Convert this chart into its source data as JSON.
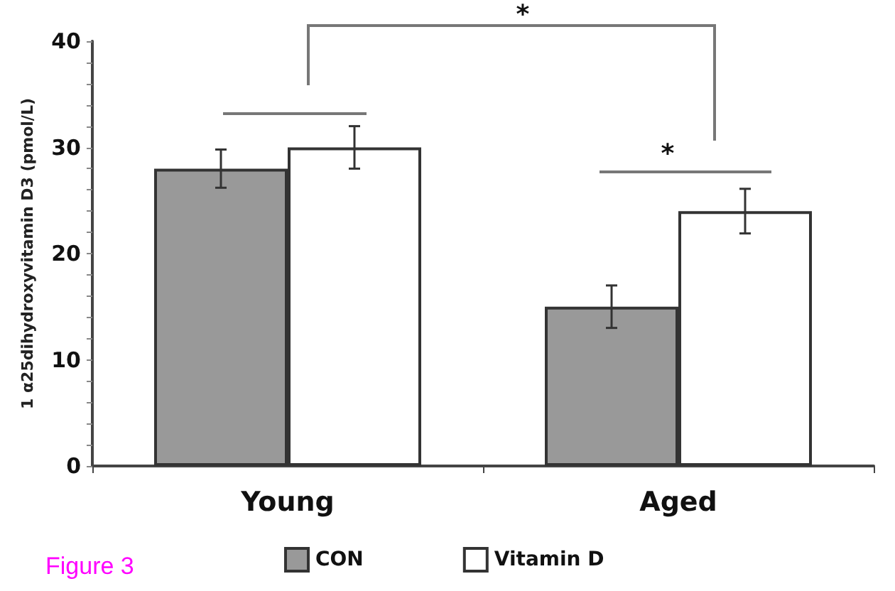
{
  "chart_data": {
    "type": "bar",
    "ylabel": "1 α25dihydroxyvitamin D3 (pmol/L)",
    "categories": [
      "Young",
      "Aged"
    ],
    "series": [
      {
        "name": "CON",
        "color": "#999999",
        "values": [
          28,
          15
        ],
        "errors": [
          1.8,
          2
        ]
      },
      {
        "name": "Vitamin D",
        "color": "#ffffff",
        "values": [
          30,
          24
        ],
        "errors": [
          2,
          2.1
        ]
      }
    ],
    "ylim": [
      0,
      40
    ],
    "yticks": [
      0,
      {
        "value": 2,
        "label": null
      },
      {
        "value": 4,
        "label": null
      },
      {
        "value": 6,
        "label": null
      },
      {
        "value": 8,
        "label": null
      },
      10,
      {
        "value": 12,
        "label": null
      },
      {
        "value": 14,
        "label": null
      },
      {
        "value": 16,
        "label": null
      },
      {
        "value": 18,
        "label": null
      },
      20,
      {
        "value": 22,
        "label": null
      },
      {
        "value": 24,
        "label": null
      },
      {
        "value": 26,
        "label": null
      },
      {
        "value": 28,
        "label": null
      },
      30,
      {
        "value": 32,
        "label": null
      },
      {
        "value": 34,
        "label": null
      },
      {
        "value": 36,
        "label": null
      },
      {
        "value": 38,
        "label": null
      },
      40
    ],
    "grid": false,
    "legend": "bottom",
    "annotations": [
      "*",
      "*",
      "Figure 3"
    ]
  }
}
